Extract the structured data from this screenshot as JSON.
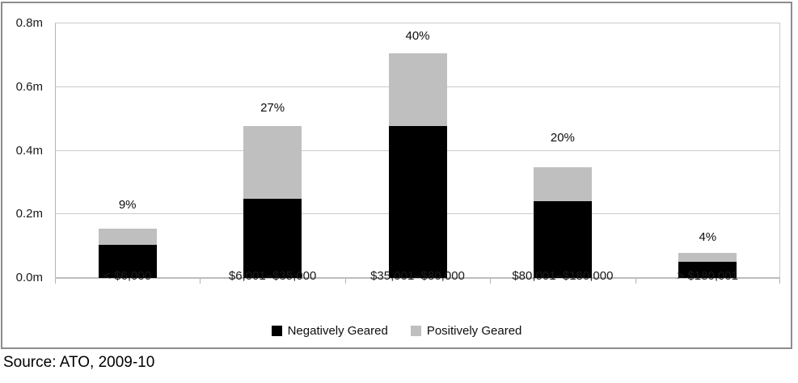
{
  "source": "Source: ATO, 2009-10",
  "chart_data": {
    "type": "bar",
    "stacked": true,
    "title": "",
    "categories": [
      "< $6,000",
      "$6,001–$35,000",
      "$35,001–$80,000",
      "$80,001–$180,000",
      "> $180,001"
    ],
    "series": [
      {
        "name": "Negatively Geared",
        "color": "#000000",
        "values": [
          0.105,
          0.248,
          0.478,
          0.242,
          0.052
        ]
      },
      {
        "name": "Positively Geared",
        "color": "#bfbfbf",
        "values": [
          0.049,
          0.23,
          0.227,
          0.106,
          0.028
        ]
      }
    ],
    "stack_totals": [
      0.154,
      0.478,
      0.705,
      0.348,
      0.08
    ],
    "bar_total_labels": [
      "9%",
      "27%",
      "40%",
      "20%",
      "4%"
    ],
    "xlabel": "",
    "ylabel": "",
    "y_ticks": [
      "0.0m",
      "0.2m",
      "0.4m",
      "0.6m",
      "0.8m"
    ],
    "ylim": [
      0,
      0.8
    ],
    "grid": true,
    "legend_position": "bottom"
  }
}
